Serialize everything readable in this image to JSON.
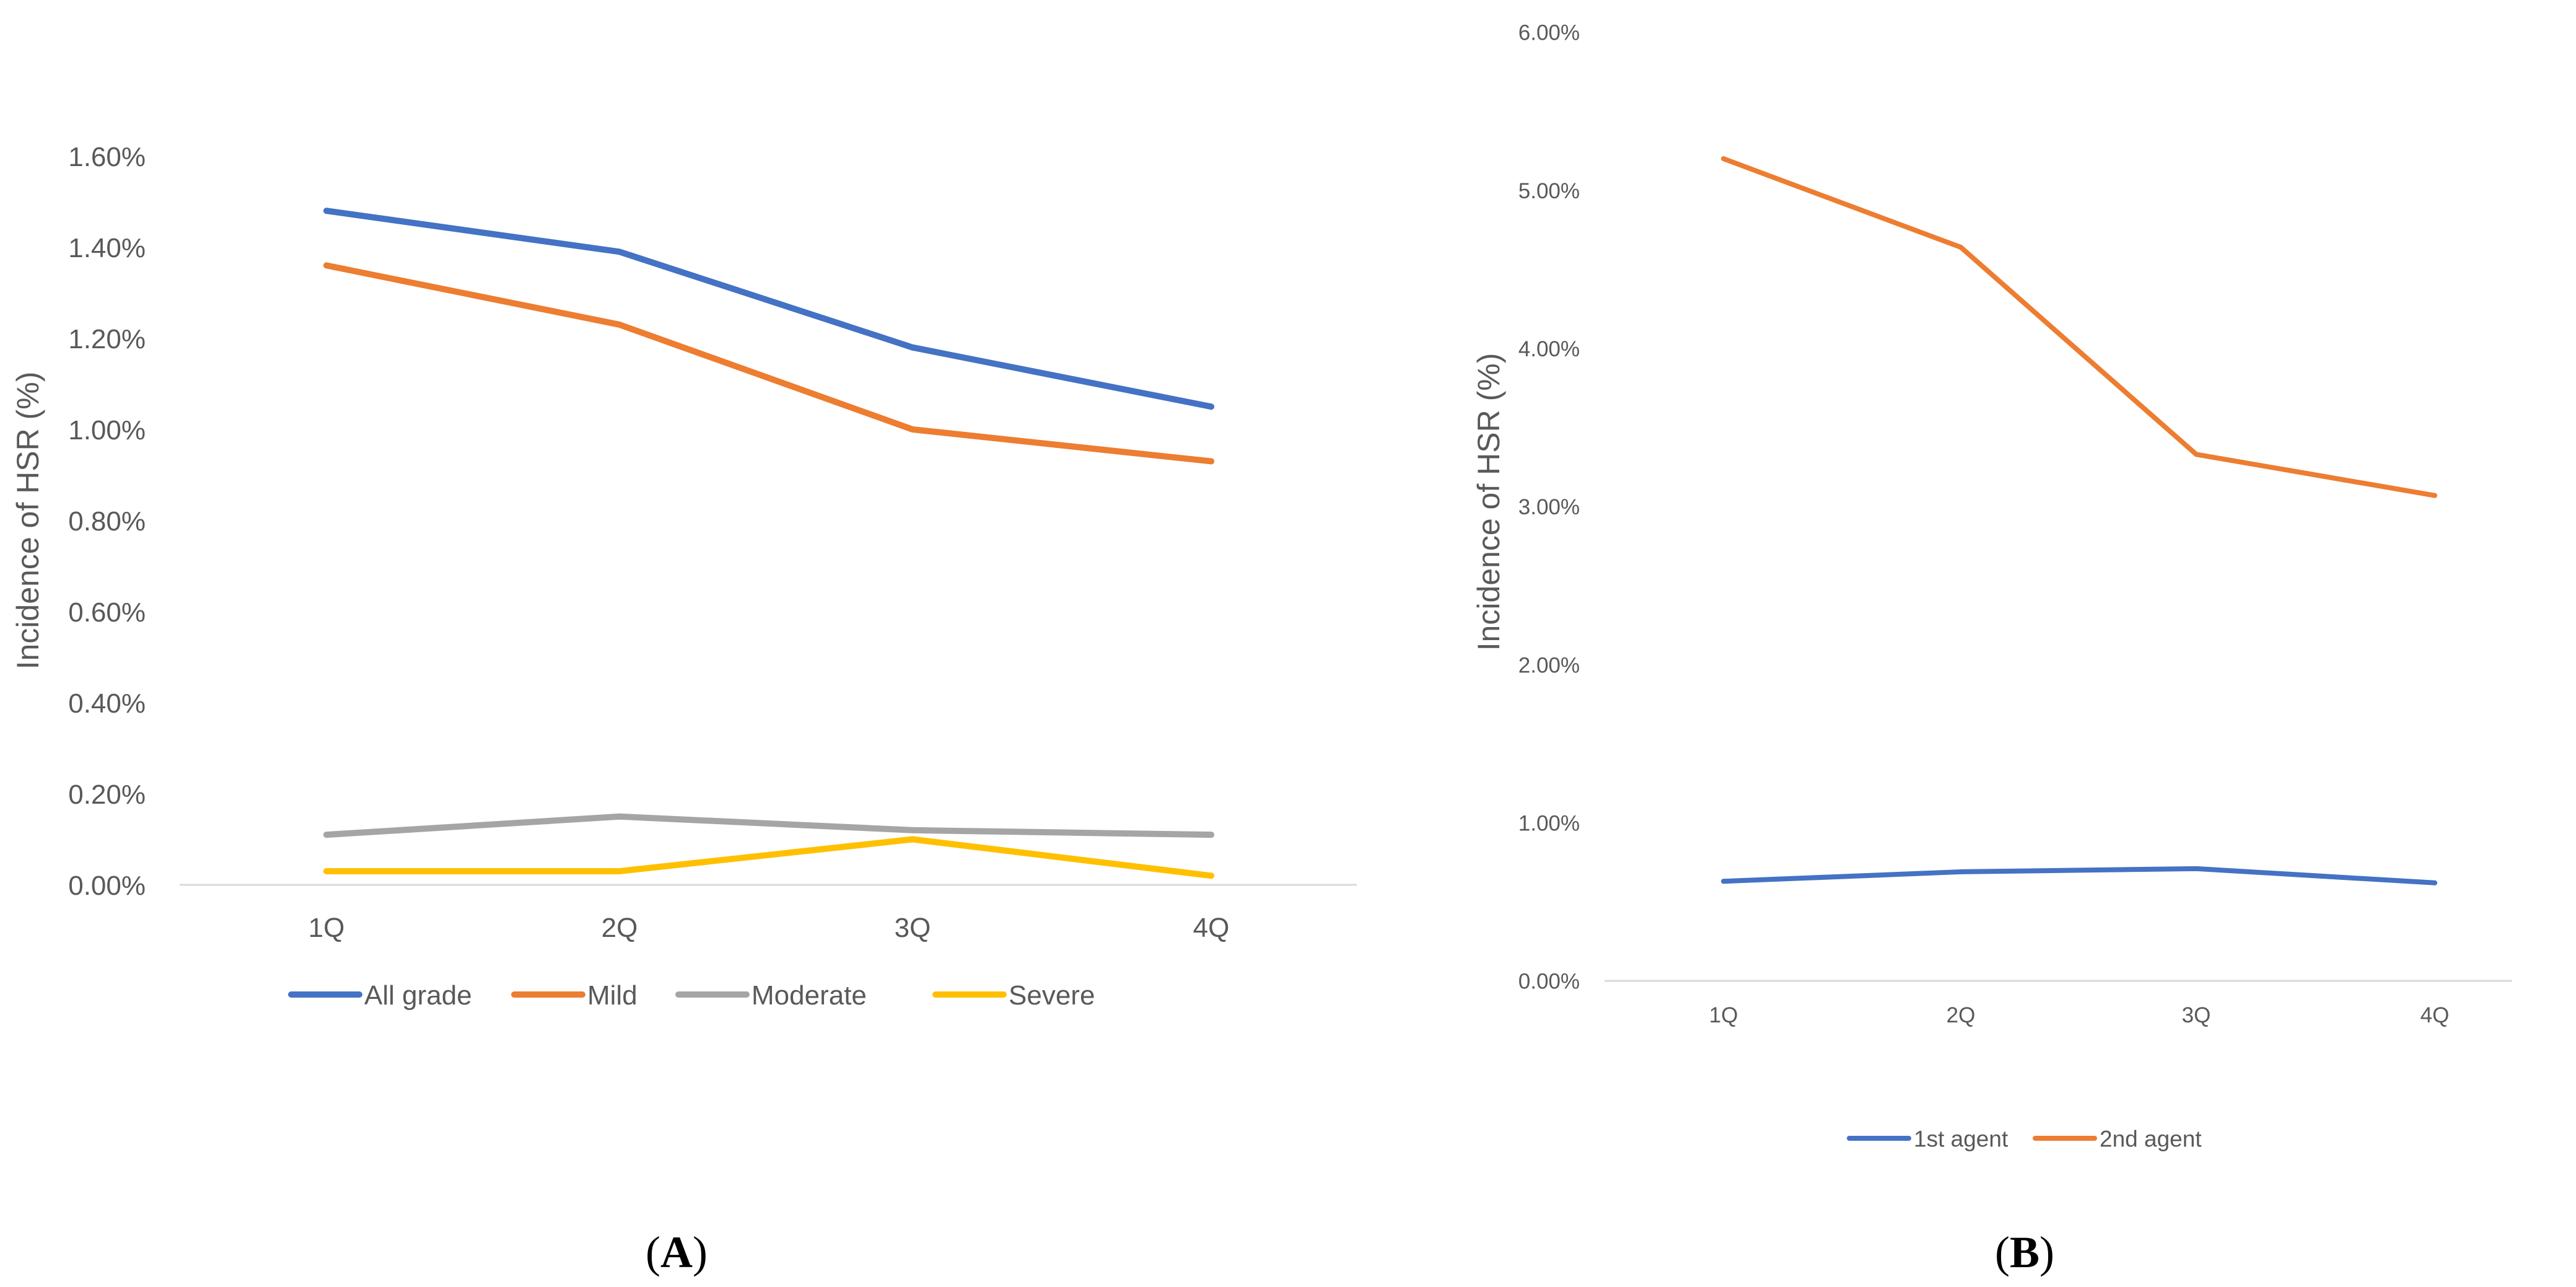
{
  "chart_data": [
    {
      "type": "line",
      "panel_label": "A",
      "categories": [
        "1Q",
        "2Q",
        "3Q",
        "4Q"
      ],
      "ylabel": "Incidence of HSR (%)",
      "xlabel": "",
      "ylim": [
        0,
        1.6
      ],
      "yticks": [
        "0.00%",
        "0.20%",
        "0.40%",
        "0.60%",
        "0.80%",
        "1.00%",
        "1.20%",
        "1.40%",
        "1.60%"
      ],
      "grid": false,
      "legend": "bottom",
      "series": [
        {
          "name": "All grade",
          "color": "#4472C4",
          "values": [
            1.48,
            1.39,
            1.18,
            1.05
          ]
        },
        {
          "name": "Mild",
          "color": "#ED7D31",
          "values": [
            1.36,
            1.23,
            1.0,
            0.93
          ]
        },
        {
          "name": "Moderate",
          "color": "#A5A5A5",
          "values": [
            0.11,
            0.15,
            0.12,
            0.11
          ]
        },
        {
          "name": "Severe",
          "color": "#FFC000",
          "values": [
            0.03,
            0.03,
            0.1,
            0.02
          ]
        }
      ]
    },
    {
      "type": "line",
      "panel_label": "B",
      "categories": [
        "1Q",
        "2Q",
        "3Q",
        "4Q"
      ],
      "ylabel": "Incidence of HSR (%)",
      "xlabel": "",
      "ylim": [
        0,
        6.0
      ],
      "yticks": [
        "0.00%",
        "1.00%",
        "2.00%",
        "3.00%",
        "4.00%",
        "5.00%",
        "6.00%"
      ],
      "grid": false,
      "legend": "bottom",
      "series": [
        {
          "name": "1st agent",
          "color": "#4472C4",
          "values": [
            0.63,
            0.69,
            0.71,
            0.62
          ]
        },
        {
          "name": "2nd agent",
          "color": "#ED7D31",
          "values": [
            5.2,
            4.64,
            3.33,
            3.07
          ]
        }
      ]
    }
  ]
}
